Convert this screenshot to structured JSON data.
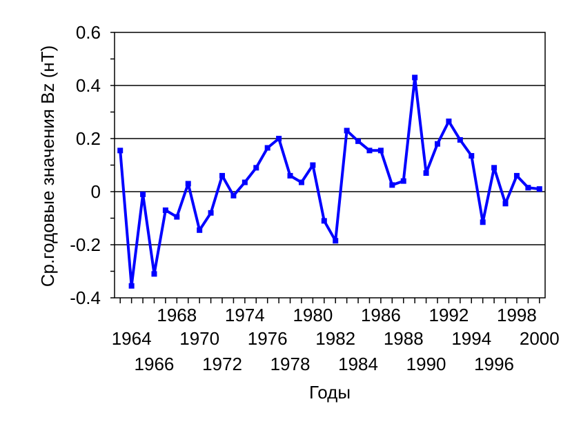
{
  "chart_data": {
    "type": "line",
    "xlabel": "Годы",
    "ylabel": "Ср.годовые значения Bz (нТ)",
    "xlim": [
      1962.5,
      2000.5
    ],
    "ylim": [
      -0.4,
      0.6
    ],
    "yticks": [
      -0.4,
      -0.2,
      0,
      0.2,
      0.4,
      0.6
    ],
    "ytick_labels": [
      "-0.4",
      "-0.2",
      "0",
      "0.2",
      "0.4",
      "0.6"
    ],
    "xtick_labels": [
      "1964",
      "1966",
      "1968",
      "1970",
      "1972",
      "1974",
      "1976",
      "1978",
      "1980",
      "1982",
      "1984",
      "1986",
      "1988",
      "1990",
      "1992",
      "1994",
      "1996",
      "1998",
      "2000"
    ],
    "grid": "horizontal",
    "color": "#0000ff",
    "series": [
      {
        "x": [
          1963,
          1964,
          1965,
          1966,
          1967,
          1968,
          1969,
          1970,
          1971,
          1972,
          1973,
          1974,
          1975,
          1976,
          1977,
          1978,
          1979,
          1980,
          1981,
          1982,
          1983,
          1984,
          1985,
          1986,
          1987,
          1988,
          1989,
          1990,
          1991,
          1992,
          1993,
          1994,
          1995,
          1996,
          1997,
          1998,
          1999,
          2000
        ],
        "values": [
          0.155,
          -0.355,
          -0.01,
          -0.31,
          -0.07,
          -0.095,
          0.03,
          -0.145,
          -0.08,
          0.06,
          -0.015,
          0.035,
          0.09,
          0.165,
          0.2,
          0.06,
          0.035,
          0.1,
          -0.11,
          -0.185,
          0.23,
          0.19,
          0.155,
          0.155,
          0.025,
          0.04,
          0.43,
          0.07,
          0.18,
          0.265,
          0.195,
          0.135,
          -0.115,
          0.09,
          -0.045,
          0.06,
          0.015,
          0.01
        ]
      }
    ]
  }
}
